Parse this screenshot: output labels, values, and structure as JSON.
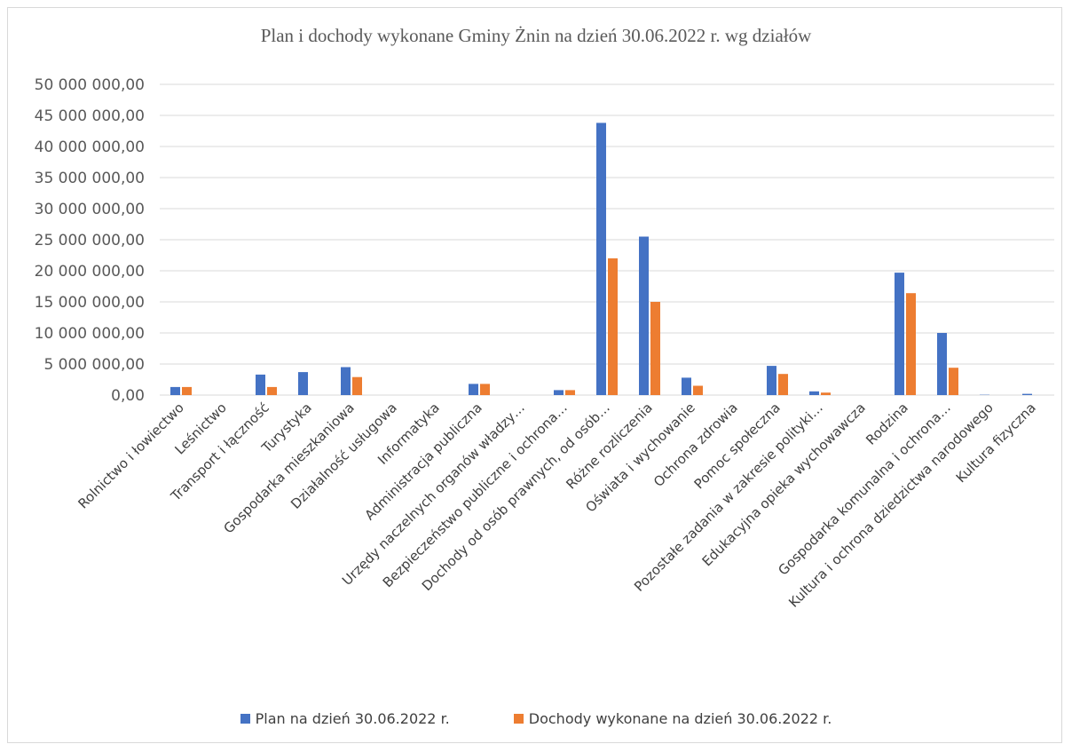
{
  "chart_data": {
    "type": "bar",
    "title": "Plan i dochody wykonane Gminy Żnin na dzień 30.06.2022 r. wg działów",
    "xlabel": "",
    "ylabel": "",
    "ylim": [
      0,
      50000000
    ],
    "yticks": [
      "0,00",
      "5 000 000,00",
      "10 000 000,00",
      "15 000 000,00",
      "20 000 000,00",
      "25 000 000,00",
      "30 000 000,00",
      "35 000 000,00",
      "40 000 000,00",
      "45 000 000,00",
      "50 000 000,00"
    ],
    "grid": true,
    "legend_position": "bottom",
    "categories": [
      "Rolnictwo i łowiectwo",
      "Leśnictwo",
      "Transport i łączność",
      "Turystyka",
      "Gospodarka mieszkaniowa",
      "Działalność usługowa",
      "Informatyka",
      "Administracja publiczna",
      "Urzędy naczelnych organów władzy…",
      "Bezpieczeństwo publiczne i ochrona…",
      "Dochody od osób prawnych, od osób…",
      "Różne rozliczenia",
      "Oświata i wychowanie",
      "Ochrona zdrowia",
      "Pomoc społeczna",
      "Pozostałe zadania w zakresie polityki…",
      "Edukacyjna opieka wychowawcza",
      "Rodzina",
      "Gospodarka komunalna i ochrona…",
      "Kultura i ochrona dziedzictwa narodowego",
      "Kultura fizyczna"
    ],
    "series": [
      {
        "name": "Plan na dzień 30.06.2022 r.",
        "color": "#4472C4",
        "values": [
          1300000,
          0,
          3300000,
          3700000,
          4500000,
          0,
          0,
          1800000,
          0,
          800000,
          43800000,
          25500000,
          2800000,
          0,
          4700000,
          600000,
          0,
          19700000,
          10000000,
          50000,
          200000
        ]
      },
      {
        "name": "Dochody wykonane na dzień 30.06.2022 r.",
        "color": "#ED7D31",
        "values": [
          1300000,
          0,
          1300000,
          0,
          2900000,
          0,
          0,
          1800000,
          0,
          800000,
          22000000,
          15000000,
          1500000,
          0,
          3400000,
          400000,
          0,
          16400000,
          4400000,
          0,
          0
        ]
      }
    ]
  }
}
